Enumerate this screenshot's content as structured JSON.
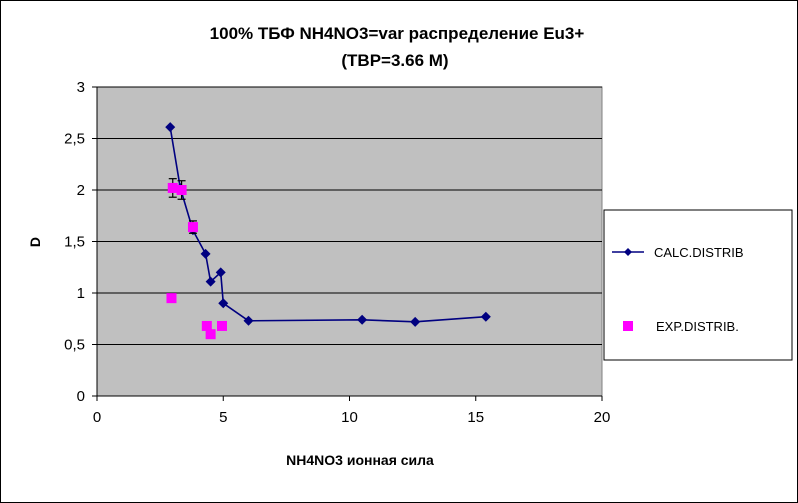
{
  "chart_data": {
    "type": "scatter",
    "title": "100%  ТБФ  NH4NO3=var распределение Eu3+",
    "subtitle": "(TBP=3.66 M)",
    "xlabel": "NH4NO3  ионная сила",
    "ylabel": "D",
    "xlim": [
      0,
      20
    ],
    "ylim": [
      0,
      3
    ],
    "x_ticks": [
      0,
      5,
      10,
      15,
      20
    ],
    "y_ticks": [
      0,
      0.5,
      1,
      1.5,
      2,
      2.5,
      3
    ],
    "x_tick_labels": [
      "0",
      "5",
      "10",
      "15",
      "20"
    ],
    "y_tick_labels": [
      "0",
      "0,5",
      "1",
      "1,5",
      "2",
      "2,5",
      "3"
    ],
    "grid": "horizontal",
    "legend_position": "right",
    "series": [
      {
        "name": "CALC.DISTRIB",
        "kind": "line-markers",
        "marker": "diamond",
        "color": "#000080",
        "points": [
          [
            2.9,
            2.61
          ],
          [
            3.3,
            2.02
          ],
          [
            3.8,
            1.61
          ],
          [
            4.3,
            1.38
          ],
          [
            4.5,
            1.11
          ],
          [
            4.9,
            1.2
          ],
          [
            5.0,
            0.9
          ],
          [
            6.0,
            0.73
          ],
          [
            10.5,
            0.74
          ],
          [
            12.6,
            0.72
          ],
          [
            15.4,
            0.77
          ]
        ]
      },
      {
        "name": "EXP.DISTRIB.",
        "kind": "markers",
        "marker": "square",
        "color": "#FF00FF",
        "points": [
          [
            3.0,
            2.02
          ],
          [
            3.35,
            2.0
          ],
          [
            3.8,
            1.64
          ],
          [
            2.95,
            0.95
          ],
          [
            4.35,
            0.68
          ],
          [
            4.5,
            0.6
          ],
          [
            4.95,
            0.68
          ]
        ],
        "error_bars": [
          [
            3.0,
            1.93,
            2.11
          ],
          [
            3.35,
            1.91,
            2.09
          ],
          [
            3.8,
            1.58,
            1.7
          ]
        ]
      }
    ]
  },
  "colors": {
    "plot_background": "#C0C0C0",
    "gridline": "#000000",
    "calc_series": "#000080",
    "exp_series": "#FF00FF"
  }
}
